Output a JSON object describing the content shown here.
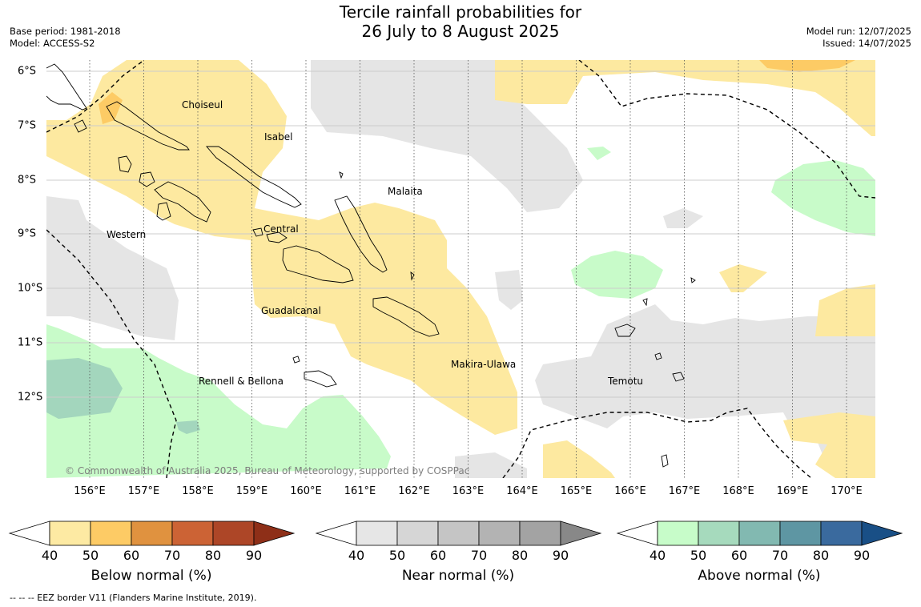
{
  "header": {
    "title_line1": "Tercile rainfall probabilities for",
    "title_line2": "26 July to 8 August 2025",
    "base_period": "Base period: 1981-2018",
    "model": "Model: ACCESS-S2",
    "model_run": "Model run: 12/07/2025",
    "issued": "Issued: 14/07/2025"
  },
  "map": {
    "region_labels": [
      "Choiseul",
      "Isabel",
      "Malaita",
      "Western",
      "Central",
      "Guadalcanal",
      "Makira-Ulawa",
      "Rennell & Bellona",
      "Temotu"
    ],
    "lat_ticks": [
      "6°S",
      "7°S",
      "8°S",
      "9°S",
      "10°S",
      "11°S",
      "12°S"
    ],
    "lon_ticks": [
      "156°E",
      "157°E",
      "158°E",
      "159°E",
      "160°E",
      "161°E",
      "162°E",
      "163°E",
      "164°E",
      "165°E",
      "166°E",
      "167°E",
      "168°E",
      "169°E",
      "170°E"
    ],
    "copyright": "© Commonwealth of Australia 2025, Bureau of Meteorology, supported by COSPPac"
  },
  "colorbars": [
    {
      "title": "Below normal (%)",
      "ticks": [
        "40",
        "50",
        "60",
        "70",
        "80",
        "90"
      ],
      "colors": [
        "#fdeaa3",
        "#fdcb65",
        "#e0923f",
        "#cc6335",
        "#ad4627",
        "#8e2f18"
      ]
    },
    {
      "title": "Near normal (%)",
      "ticks": [
        "40",
        "50",
        "60",
        "70",
        "80",
        "90"
      ],
      "colors": [
        "#e6e6e6",
        "#d6d6d6",
        "#c5c5c5",
        "#b3b3b3",
        "#a3a3a3",
        "#888888"
      ]
    },
    {
      "title": "Above normal (%)",
      "ticks": [
        "40",
        "50",
        "60",
        "70",
        "80",
        "90"
      ],
      "colors": [
        "#c7fcc9",
        "#a6dabd",
        "#82b9b1",
        "#5e96a3",
        "#3a6a9e",
        "#194f86"
      ]
    }
  ],
  "footer": "--  --  -- EEZ border V11 (Flanders Marine Institute, 2019)."
}
